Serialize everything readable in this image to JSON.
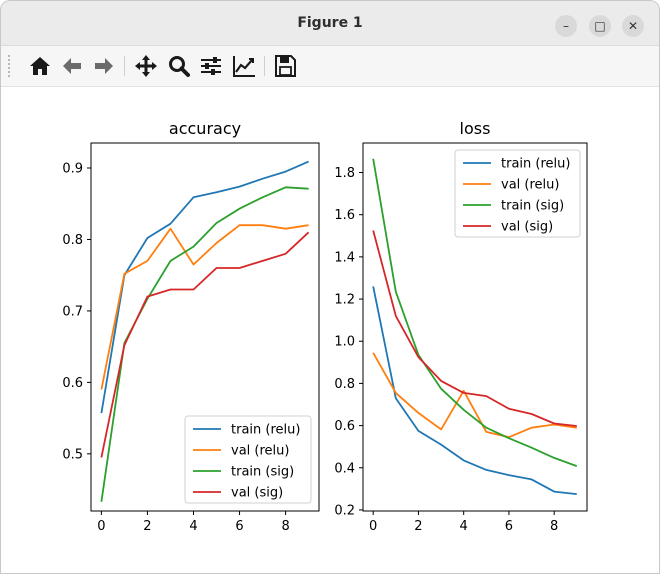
{
  "window": {
    "title": "Figure 1",
    "controls": {
      "minimize": "–",
      "maximize": "□",
      "close": "✕"
    }
  },
  "toolbar": {
    "buttons": [
      {
        "name": "home-icon",
        "tooltip": "Reset original view"
      },
      {
        "name": "back-icon",
        "tooltip": "Back to previous view"
      },
      {
        "name": "forward-icon",
        "tooltip": "Forward to next view"
      },
      {
        "name": "pan-icon",
        "tooltip": "Pan axes"
      },
      {
        "name": "zoom-icon",
        "tooltip": "Zoom to rectangle"
      },
      {
        "name": "configure-subplots-icon",
        "tooltip": "Configure subplots"
      },
      {
        "name": "edit-axis-icon",
        "tooltip": "Edit axis, curve and image parameters"
      },
      {
        "name": "save-icon",
        "tooltip": "Save the figure"
      }
    ]
  },
  "chart_data": [
    {
      "type": "line",
      "title": "accuracy",
      "xlabel": "",
      "ylabel": "",
      "xlim": [
        -0.45,
        9.45
      ],
      "ylim": [
        0.42,
        0.935
      ],
      "xticks": [
        0,
        2,
        4,
        6,
        8
      ],
      "xtick_labels": [
        "0",
        "2",
        "4",
        "6",
        "8"
      ],
      "yticks": [
        0.5,
        0.6,
        0.7,
        0.8,
        0.9
      ],
      "ytick_labels": [
        "0.5",
        "0.6",
        "0.7",
        "0.8",
        "0.9"
      ],
      "legend": "lower-right",
      "grid": false,
      "x": [
        0,
        1,
        2,
        3,
        4,
        5,
        6,
        7,
        8,
        9
      ],
      "series": [
        {
          "name": "train (relu)",
          "color": "#1f77b4",
          "values": [
            0.557,
            0.75,
            0.802,
            0.822,
            0.859,
            0.866,
            0.874,
            0.885,
            0.895,
            0.909
          ]
        },
        {
          "name": "val (relu)",
          "color": "#ff7f0e",
          "values": [
            0.59,
            0.752,
            0.77,
            0.815,
            0.765,
            0.795,
            0.82,
            0.82,
            0.815,
            0.82
          ]
        },
        {
          "name": "train (sig)",
          "color": "#2ca02c",
          "values": [
            0.433,
            0.655,
            0.717,
            0.77,
            0.79,
            0.823,
            0.843,
            0.859,
            0.873,
            0.871
          ]
        },
        {
          "name": "val (sig)",
          "color": "#d62728",
          "values": [
            0.495,
            0.652,
            0.72,
            0.73,
            0.73,
            0.76,
            0.76,
            0.77,
            0.78,
            0.81
          ]
        }
      ]
    },
    {
      "type": "line",
      "title": "loss",
      "xlabel": "",
      "ylabel": "",
      "xlim": [
        -0.45,
        9.45
      ],
      "ylim": [
        0.195,
        1.94
      ],
      "xticks": [
        0,
        2,
        4,
        6,
        8
      ],
      "xtick_labels": [
        "0",
        "2",
        "4",
        "6",
        "8"
      ],
      "yticks": [
        0.2,
        0.4,
        0.6,
        0.8,
        1.0,
        1.2,
        1.4,
        1.6,
        1.8
      ],
      "ytick_labels": [
        "0.2",
        "0.4",
        "0.6",
        "0.8",
        "1.0",
        "1.2",
        "1.4",
        "1.6",
        "1.8"
      ],
      "legend": "upper-right",
      "grid": false,
      "x": [
        0,
        1,
        2,
        3,
        4,
        5,
        6,
        7,
        8,
        9
      ],
      "series": [
        {
          "name": "train (relu)",
          "color": "#1f77b4",
          "values": [
            1.26,
            0.73,
            0.575,
            0.51,
            0.435,
            0.39,
            0.365,
            0.345,
            0.287,
            0.275
          ]
        },
        {
          "name": "val (relu)",
          "color": "#ff7f0e",
          "values": [
            0.945,
            0.755,
            0.66,
            0.582,
            0.765,
            0.57,
            0.545,
            0.59,
            0.605,
            0.59
          ]
        },
        {
          "name": "train (sig)",
          "color": "#2ca02c",
          "values": [
            1.865,
            1.235,
            0.935,
            0.775,
            0.675,
            0.59,
            0.54,
            0.495,
            0.447,
            0.408
          ]
        },
        {
          "name": "val (sig)",
          "color": "#d62728",
          "values": [
            1.525,
            1.12,
            0.925,
            0.812,
            0.755,
            0.74,
            0.68,
            0.655,
            0.61,
            0.598
          ]
        }
      ]
    }
  ]
}
